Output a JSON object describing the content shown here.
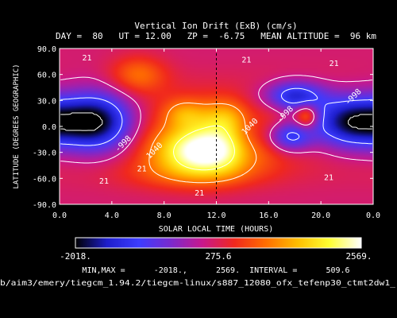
{
  "chart_data": {
    "type": "heatmap",
    "title": "Vertical Ion Drift (ExB) (cm/s)",
    "subtitle": "DAY =  80   UT = 12.00   ZP =  -6.75   MEAN ALTITUDE =  96 km",
    "xlabel": "SOLAR LOCAL TIME (HOURS)",
    "ylabel": "LATITUDE (DEGREES GEOGRAPHIC)",
    "xlim": [
      0,
      24
    ],
    "ylim": [
      -90,
      90
    ],
    "x_ticks": [
      "0.0",
      "4.0",
      "8.0",
      "12.0",
      "16.0",
      "20.0",
      "0.0"
    ],
    "y_ticks": [
      "90.0",
      "60.0",
      "30.0",
      "0.0",
      "-30.0",
      "-60.0",
      "-90.0"
    ],
    "reference_line_x": 12,
    "colorbar": {
      "min_label": "-2018.",
      "mid_label": "275.6",
      "max_label": "2569.",
      "colors": [
        "#000000",
        "#1e1ecc",
        "#3c3cff",
        "#7a2acd",
        "#c8188c",
        "#f0281e",
        "#ff6e00",
        "#ffbe00",
        "#ffff32",
        "#ffffff"
      ]
    },
    "stats_line": "MIN,MAX =      -2018.,      2569.  INTERVAL =      509.6",
    "min": -2018,
    "max": 2569,
    "interval": 509.6,
    "contour_labels": [
      "21",
      "21",
      "21",
      "21",
      "21",
      "21",
      "21",
      "-998",
      "-998",
      "1040",
      "1040",
      "-998"
    ],
    "features": [
      {
        "kind": "max",
        "lt": 11.0,
        "lat": -25,
        "value": 2569
      },
      {
        "kind": "max",
        "lt": 9.2,
        "lat": 15,
        "value": 1500
      },
      {
        "kind": "max",
        "lt": 18.9,
        "lat": 12,
        "value": 1550
      },
      {
        "kind": "min",
        "lt": 3.0,
        "lat": 5,
        "value": -1800
      },
      {
        "kind": "min",
        "lt": 22.5,
        "lat": 5,
        "value": -2018
      },
      {
        "kind": "min",
        "lt": 18.3,
        "lat": 35,
        "value": -1500
      },
      {
        "kind": "min",
        "lt": 17.5,
        "lat": -12,
        "value": -1300
      }
    ]
  },
  "footer": {
    "path": "b/aim3/emery/tiegcm_1.94.2/tiegcm-linux/s887_12080_ofx_tefenp30_ctmt2dw1_"
  }
}
